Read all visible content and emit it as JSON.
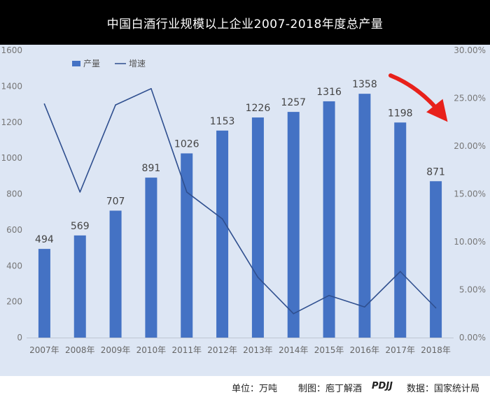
{
  "chart_data": {
    "type": "bar",
    "title": "中国白酒行业规模以上企业2007-2018年度总产量",
    "categories": [
      "2007年",
      "2008年",
      "2009年",
      "2010年",
      "2011年",
      "2012年",
      "2013年",
      "2014年",
      "2015年",
      "2016年",
      "2017年",
      "2018年"
    ],
    "series": [
      {
        "name": "产量",
        "type": "bar",
        "axis": "left",
        "color": "#4472c4",
        "values": [
          494,
          569,
          707,
          891,
          1026,
          1153,
          1226,
          1257,
          1316,
          1358,
          1198,
          871
        ]
      },
      {
        "name": "增速",
        "type": "line",
        "axis": "right",
        "color": "#2f4f8f",
        "values": [
          24.4,
          15.2,
          24.3,
          26.0,
          15.2,
          12.4,
          6.3,
          2.5,
          4.4,
          3.2,
          6.9,
          3.1
        ]
      }
    ],
    "ylim": [
      0,
      1600
    ],
    "yticks": [
      "0",
      "200",
      "400",
      "600",
      "800",
      "1000",
      "1200",
      "1400",
      "1600"
    ],
    "y2lim": [
      0,
      30
    ],
    "y2ticks": [
      "0.00%",
      "5.00%",
      "10.00%",
      "15.00%",
      "20.00%",
      "25.00%",
      "30.00%"
    ],
    "legend_position": "top-left",
    "grid": false
  },
  "annotation": {
    "arrow_color": "#e8211b",
    "direction": "down-right"
  },
  "footer": {
    "unit": "单位：万吨",
    "maker_prefix": "制图：",
    "maker_name": "庖丁解酒",
    "maker_brand": "PDJJ",
    "source": "数据：国家统计局"
  }
}
